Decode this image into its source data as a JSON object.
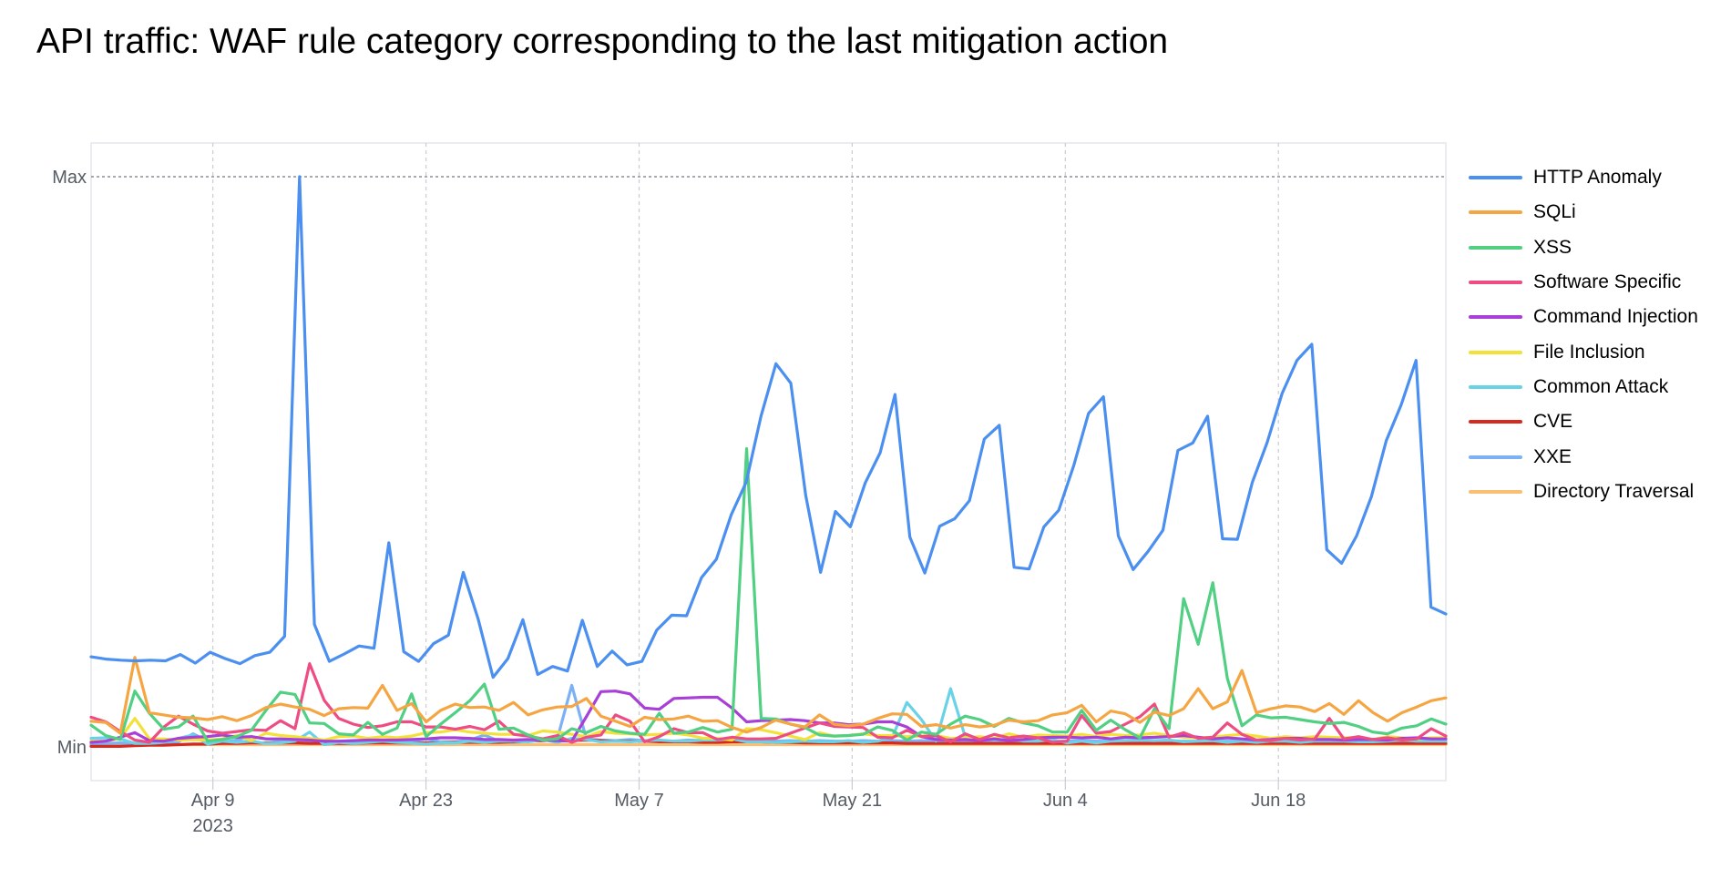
{
  "title": "API traffic: WAF rule category corresponding to the last mitigation action",
  "chart_data": {
    "type": "line",
    "title": "API traffic: WAF rule category corresponding to the last mitigation action",
    "xlabel": "",
    "ylabel": "",
    "y_ticks": [
      "Max",
      "Min"
    ],
    "ylim": [
      0,
      100
    ],
    "x_ticks": [
      {
        "label": "Apr 9",
        "sublabel": "2023",
        "date": "2023-04-09"
      },
      {
        "label": "Apr 23",
        "sublabel": "",
        "date": "2023-04-23"
      },
      {
        "label": "May 7",
        "sublabel": "",
        "date": "2023-05-07"
      },
      {
        "label": "May 21",
        "sublabel": "",
        "date": "2023-05-21"
      },
      {
        "label": "Jun 4",
        "sublabel": "",
        "date": "2023-06-04"
      },
      {
        "label": "Jun 18",
        "sublabel": "",
        "date": "2023-06-18"
      }
    ],
    "x_start": "2023-04-01",
    "x_end": "2023-06-29",
    "grid": true,
    "legend_position": "right",
    "series": [
      {
        "name": "HTTP Anomaly",
        "color": "#4b8ff0",
        "values": [
          15.8,
          15.4,
          15.2,
          15.1,
          15.2,
          15.1,
          16.2,
          14.7,
          16.6,
          15.5,
          14.6,
          16.0,
          16.6,
          19.4,
          100,
          21.5,
          15.0,
          16.3,
          17.7,
          17.3,
          35.8,
          16.7,
          15.0,
          18.1,
          19.6,
          30.6,
          22.4,
          12.2,
          15.5,
          22.3,
          12.7,
          14.1,
          13.3,
          22.2,
          14.1,
          16.8,
          14.4,
          15.0,
          20.5,
          23.1,
          23.0,
          29.7,
          32.9,
          40.7,
          46.4,
          58.0,
          67.2,
          63.8,
          44.1,
          30.6,
          41.3,
          38.6,
          46.3,
          51.6,
          61.8,
          36.8,
          30.5,
          38.7,
          40.0,
          43.2,
          54.0,
          56.4,
          31.5,
          31.2,
          38.6,
          41.5,
          49.3,
          58.5,
          61.4,
          37.0,
          31.1,
          34.3,
          38.0,
          52.0,
          53.3,
          58.0,
          36.5,
          36.4,
          46.4,
          53.4,
          62.0,
          67.8,
          70.6,
          34.6,
          32.2,
          37.0,
          43.9,
          53.7,
          60.0,
          67.8,
          24.5,
          23.3
        ]
      },
      {
        "name": "SQLi",
        "color": "#f5a642",
        "values": [
          4.5,
          4.3,
          2.4,
          15.7,
          6.0,
          5.6,
          5.2,
          5.1,
          4.8,
          5.3,
          4.6,
          5.5,
          6.9,
          7.5,
          7.0,
          6.6,
          5.5,
          6.7,
          6.9,
          6.8,
          10.8,
          6.4,
          7.6,
          4.4,
          6.4,
          7.5,
          6.9,
          7.0,
          6.4,
          7.8,
          5.6,
          6.5,
          7.0,
          7.1,
          8.5,
          5.4,
          4.5,
          3.6,
          5.2,
          4.8,
          4.9,
          5.4,
          4.5,
          4.6,
          3.4,
          2.6,
          3.4,
          4.7,
          4.0,
          3.5,
          5.6,
          4.0,
          3.7,
          4.0,
          5.0,
          5.8,
          5.7,
          3.6,
          3.9,
          3.3,
          3.9,
          3.5,
          3.8,
          4.7,
          4.4,
          4.6,
          5.6,
          6.0,
          7.3,
          4.4,
          6.3,
          5.8,
          4.3,
          6.1,
          5.5,
          6.7,
          10.2,
          6.7,
          7.9,
          13.4,
          6.0,
          6.7,
          7.2,
          7.0,
          6.2,
          7.6,
          5.7,
          8.1,
          6.0,
          4.5,
          6.0,
          7.0,
          8.1,
          8.6
        ]
      },
      {
        "name": "XSS",
        "color": "#51cf83",
        "values": [
          3.8,
          2.0,
          1.3,
          9.8,
          5.9,
          3.1,
          3.5,
          5.4,
          1.0,
          1.3,
          1.8,
          2.9,
          6.4,
          9.6,
          9.2,
          4.2,
          4.1,
          2.3,
          2.1,
          4.3,
          2.2,
          3.3,
          9.3,
          1.8,
          4.0,
          6.0,
          8.1,
          11.0,
          3.1,
          3.3,
          2.1,
          1.2,
          1.4,
          3.2,
          2.5,
          3.6,
          2.8,
          2.4,
          2.2,
          5.9,
          2.4,
          2.6,
          3.4,
          2.6,
          3.1,
          52.3,
          5.0,
          4.9,
          4.0,
          3.4,
          2.1,
          1.9,
          2.0,
          2.2,
          3.5,
          2.9,
          1.2,
          2.6,
          2.2,
          4.0,
          5.4,
          4.8,
          3.6,
          5.0,
          4.2,
          3.7,
          2.6,
          2.6,
          6.4,
          2.9,
          4.7,
          3.0,
          1.6,
          6.7,
          3.2,
          26.0,
          18.0,
          28.8,
          12.0,
          3.7,
          5.6,
          5.1,
          5.2,
          4.8,
          4.4,
          4.1,
          4.3,
          3.6,
          2.6,
          2.3,
          3.3,
          3.7,
          4.9,
          4.0
        ]
      },
      {
        "name": "Software Specific",
        "color": "#ee4d84",
        "values": [
          5.2,
          4.4,
          2.7,
          1.2,
          0.8,
          3.5,
          5.4,
          4.0,
          2.8,
          2.4,
          2.7,
          3.0,
          2.9,
          4.6,
          3.2,
          14.6,
          8.2,
          5.0,
          4.0,
          3.4,
          3.7,
          4.4,
          4.4,
          3.5,
          3.5,
          3.1,
          3.6,
          3.0,
          4.5,
          2.2,
          1.9,
          1.4,
          2.0,
          0.8,
          1.7,
          2.1,
          5.6,
          4.5,
          0.9,
          1.8,
          3.2,
          2.5,
          2.5,
          1.3,
          1.7,
          1.4,
          1.4,
          1.5,
          2.4,
          3.3,
          4.2,
          3.6,
          3.5,
          3.4,
          1.7,
          1.6,
          2.9,
          1.8,
          2.0,
          0.9,
          2.3,
          1.3,
          2.2,
          1.6,
          1.9,
          1.6,
          0.8,
          1.0,
          5.5,
          2.4,
          2.7,
          4.0,
          5.3,
          7.5,
          1.7,
          2.5,
          1.5,
          1.7,
          4.2,
          2.2,
          1.2,
          1.1,
          1.5,
          1.2,
          1.4,
          5.0,
          1.4,
          1.8,
          1.3,
          1.6,
          1.2,
          1.4,
          3.2,
          1.9
        ]
      },
      {
        "name": "Command Injection",
        "color": "#a83fd6",
        "values": [
          0.8,
          1.0,
          1.7,
          2.5,
          1.1,
          1.0,
          1.5,
          1.7,
          1.8,
          2.1,
          1.7,
          1.8,
          1.4,
          1.4,
          1.3,
          1.2,
          1.0,
          1.0,
          1.1,
          1.2,
          1.2,
          1.2,
          1.3,
          1.4,
          1.6,
          1.6,
          1.5,
          1.3,
          1.3,
          1.2,
          1.3,
          1.2,
          1.1,
          1.0,
          5.3,
          9.7,
          9.8,
          9.3,
          6.8,
          6.6,
          8.5,
          8.6,
          8.7,
          8.7,
          6.8,
          4.4,
          4.6,
          4.7,
          4.8,
          4.6,
          4.2,
          4.2,
          3.9,
          4.0,
          4.4,
          4.4,
          3.5,
          1.8,
          1.3,
          1.2,
          1.3,
          1.1,
          1.4,
          1.1,
          1.3,
          1.6,
          1.7,
          1.7,
          1.6,
          1.7,
          1.4,
          1.7,
          1.6,
          1.7,
          1.8,
          2.0,
          1.7,
          1.4,
          1.6,
          1.4,
          1.2,
          1.3,
          1.5,
          1.5,
          1.3,
          1.3,
          1.2,
          1.3,
          1.3,
          1.2,
          1.5,
          1.6,
          1.4,
          1.4
        ]
      },
      {
        "name": "File Inclusion",
        "color": "#f3e13a",
        "values": [
          1.0,
          1.0,
          1.5,
          5.0,
          1.4,
          1.4,
          1.2,
          1.3,
          1.2,
          1.4,
          2.0,
          1.1,
          2.4,
          2.0,
          1.8,
          1.5,
          1.2,
          1.8,
          1.9,
          1.5,
          1.8,
          1.6,
          1.9,
          2.5,
          2.6,
          3.0,
          2.6,
          2.4,
          2.2,
          2.2,
          2.0,
          2.8,
          2.6,
          2.2,
          1.8,
          2.7,
          2.4,
          2.3,
          2.1,
          2.2,
          2.4,
          2.1,
          1.5,
          1.5,
          1.2,
          3.2,
          3.0,
          2.5,
          1.9,
          1.3,
          2.5,
          1.9,
          2.0,
          2.3,
          2.0,
          2.0,
          1.8,
          1.9,
          2.0,
          1.5,
          1.6,
          1.8,
          1.5,
          2.3,
          1.7,
          2.1,
          2.0,
          1.9,
          2.2,
          1.8,
          2.2,
          2.0,
          2.1,
          2.4,
          2.0,
          1.7,
          1.6,
          1.7,
          2.0,
          2.2,
          1.9,
          1.5,
          1.8,
          1.6,
          1.8,
          1.7,
          1.6,
          1.6,
          1.3,
          1.8,
          1.6,
          1.4,
          1.6,
          1.6
        ]
      },
      {
        "name": "Common Attack",
        "color": "#6ad2e6",
        "values": [
          1.5,
          1.6,
          1.4,
          0.6,
          0.6,
          0.8,
          1.5,
          2.1,
          0.5,
          1.0,
          0.8,
          1.0,
          0.6,
          0.7,
          1.0,
          2.6,
          0.4,
          0.8,
          0.6,
          0.8,
          1.0,
          0.8,
          0.7,
          0.5,
          0.7,
          0.7,
          1.0,
          0.8,
          1.0,
          1.0,
          0.9,
          1.3,
          0.8,
          1.5,
          1.3,
          0.9,
          1.0,
          0.9,
          1.1,
          1.2,
          1.0,
          1.0,
          1.2,
          1.2,
          1.4,
          0.9,
          0.9,
          0.8,
          0.9,
          1.0,
          0.9,
          0.9,
          1.1,
          0.8,
          1.0,
          1.7,
          7.8,
          4.8,
          1.0,
          10.2,
          1.8,
          1.6,
          1.2,
          1.4,
          1.0,
          1.0,
          1.3,
          0.7,
          1.0,
          0.7,
          1.0,
          1.1,
          1.2,
          1.1,
          1.2,
          0.9,
          1.0,
          1.1,
          0.8,
          1.0,
          0.8,
          1.0,
          1.0,
          0.8,
          1.0,
          1.0,
          1.0,
          0.9,
          0.9,
          1.0,
          1.2,
          1.0,
          1.0,
          1.0
        ]
      },
      {
        "name": "CVE",
        "color": "#d62a1e",
        "values": [
          0.1,
          0.1,
          0.1,
          0.2,
          0.3,
          0.3,
          0.4,
          0.5,
          0.5,
          0.6,
          0.6,
          0.7,
          0.7,
          0.7,
          0.7,
          0.6,
          0.6,
          0.6,
          0.6,
          0.7,
          0.7,
          0.7,
          0.7,
          0.7,
          0.7,
          0.8,
          0.8,
          0.8,
          0.8,
          0.9,
          1.0,
          1.1,
          1.3,
          1.1,
          1.2,
          1.1,
          1.0,
          1.0,
          1.0,
          0.9,
          0.9,
          0.9,
          0.8,
          0.8,
          0.9,
          0.9,
          0.9,
          0.8,
          0.8,
          0.7,
          0.7,
          0.7,
          0.7,
          0.7,
          0.7,
          0.7,
          0.6,
          0.6,
          0.6,
          0.6,
          0.6,
          0.6,
          0.6,
          0.6,
          0.6,
          0.6,
          0.6,
          0.6,
          0.6,
          0.6,
          0.6,
          0.6,
          0.6,
          0.6,
          0.6,
          0.6,
          0.6,
          0.6,
          0.6,
          0.6,
          0.6,
          0.6,
          0.6,
          0.6,
          0.6,
          0.6,
          0.6,
          0.6,
          0.6,
          0.6,
          0.6,
          0.6,
          0.6,
          0.6
        ]
      },
      {
        "name": "XXE",
        "color": "#7cb1f5",
        "values": [
          0.5,
          0.6,
          0.7,
          0.6,
          1.0,
          0.7,
          0.9,
          2.3,
          1.0,
          0.8,
          1.2,
          1.8,
          1.4,
          1.1,
          0.8,
          0.7,
          0.8,
          0.9,
          1.0,
          1.1,
          1.0,
          1.2,
          1.0,
          1.4,
          0.9,
          0.9,
          1.2,
          2.1,
          1.0,
          0.8,
          1.0,
          1.4,
          1.4,
          10.8,
          1.4,
          1.2,
          1.1,
          1.3,
          1.1,
          1.1,
          1.0,
          1.2,
          1.1,
          1.0,
          1.0,
          1.2,
          1.1,
          1.0,
          1.1,
          1.0,
          1.1,
          1.0,
          1.0,
          1.1,
          1.0,
          1.1,
          1.0,
          1.1,
          1.0,
          1.1,
          1.0,
          1.1,
          1.0,
          1.0,
          1.1,
          1.0,
          1.0,
          1.0,
          1.1,
          1.0,
          1.0,
          1.0,
          1.0,
          1.0,
          1.0,
          1.0,
          1.0,
          1.0,
          1.0,
          1.0,
          1.0,
          1.0,
          1.0,
          1.0,
          1.0,
          1.0,
          1.0,
          1.0,
          1.0,
          1.0,
          1.0,
          1.0,
          1.0,
          1.0
        ]
      },
      {
        "name": "Directory Traversal",
        "color": "#fbbf74",
        "values": [
          0.4,
          0.4,
          0.4,
          0.4,
          0.4,
          0.4,
          0.4,
          0.4,
          0.4,
          0.4,
          0.4,
          0.4,
          0.4,
          0.4,
          0.4,
          0.4,
          0.4,
          0.4,
          0.4,
          0.4,
          0.4,
          0.4,
          0.4,
          0.4,
          0.4,
          0.4,
          0.4,
          0.4,
          0.4,
          0.4,
          0.4,
          0.4,
          0.4,
          0.4,
          0.4,
          0.4,
          0.4,
          0.4,
          0.4,
          0.4,
          0.4,
          0.4,
          0.4,
          0.4,
          0.4,
          0.4,
          0.4,
          0.4,
          0.4,
          0.4,
          0.4,
          0.4,
          0.4,
          0.4,
          0.4,
          0.4,
          0.4,
          0.4,
          0.4,
          0.4,
          0.4,
          0.4,
          0.4,
          0.4,
          0.4,
          0.4,
          0.4,
          0.4,
          0.4,
          0.4,
          0.4,
          0.4,
          0.4,
          0.4,
          0.4,
          0.4,
          0.4,
          0.4,
          0.4,
          0.4,
          0.4,
          0.4,
          0.4,
          0.4,
          0.4,
          0.4,
          0.4,
          0.4,
          0.4,
          0.4,
          0.4,
          0.4,
          0.4,
          0.4
        ]
      }
    ]
  }
}
